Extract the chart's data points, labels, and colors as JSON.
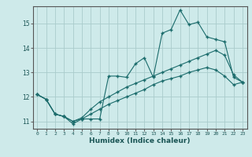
{
  "xlabel": "Humidex (Indice chaleur)",
  "ylabel": "",
  "bg_color": "#ceeaea",
  "grid_color": "#aacccc",
  "line_color": "#1a6b6b",
  "marker": "+",
  "xlim": [
    -0.5,
    23.5
  ],
  "ylim": [
    10.7,
    15.7
  ],
  "xticks": [
    0,
    1,
    2,
    3,
    4,
    5,
    6,
    7,
    8,
    9,
    10,
    11,
    12,
    13,
    14,
    15,
    16,
    17,
    18,
    19,
    20,
    21,
    22,
    23
  ],
  "yticks": [
    11,
    12,
    13,
    14,
    15
  ],
  "line1_x": [
    0,
    1,
    2,
    3,
    4,
    5,
    6,
    7,
    8,
    9,
    10,
    11,
    12,
    13,
    14,
    15,
    16,
    17,
    18,
    19,
    20,
    21,
    22,
    23
  ],
  "line1_y": [
    12.1,
    11.9,
    11.3,
    11.2,
    10.9,
    11.1,
    11.1,
    11.1,
    12.85,
    12.85,
    12.8,
    13.35,
    13.6,
    12.8,
    14.6,
    14.75,
    15.55,
    14.95,
    15.05,
    14.45,
    14.35,
    14.25,
    12.8,
    12.6
  ],
  "line2_x": [
    0,
    1,
    2,
    3,
    4,
    5,
    6,
    7,
    8,
    9,
    10,
    11,
    12,
    13,
    14,
    15,
    16,
    17,
    18,
    19,
    20,
    21,
    22,
    23
  ],
  "line2_y": [
    12.1,
    11.9,
    11.3,
    11.2,
    11.0,
    11.15,
    11.5,
    11.8,
    12.0,
    12.2,
    12.4,
    12.55,
    12.7,
    12.85,
    13.0,
    13.15,
    13.3,
    13.45,
    13.6,
    13.75,
    13.9,
    13.7,
    12.9,
    12.6
  ],
  "line3_x": [
    0,
    1,
    2,
    3,
    4,
    5,
    6,
    7,
    8,
    9,
    10,
    11,
    12,
    13,
    14,
    15,
    16,
    17,
    18,
    19,
    20,
    21,
    22,
    23
  ],
  "line3_y": [
    12.1,
    11.9,
    11.3,
    11.2,
    11.0,
    11.1,
    11.3,
    11.5,
    11.7,
    11.85,
    12.0,
    12.15,
    12.3,
    12.5,
    12.65,
    12.75,
    12.85,
    13.0,
    13.1,
    13.2,
    13.1,
    12.85,
    12.5,
    12.6
  ]
}
